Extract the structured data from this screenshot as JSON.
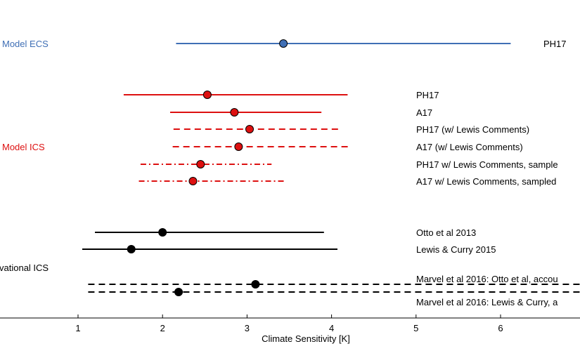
{
  "chart_data": {
    "type": "errorbar",
    "xlabel": "Climate Sensitivity [K]",
    "xlim": [
      -0.9,
      6.95
    ],
    "xticks": [
      1,
      2,
      3,
      4,
      5,
      6
    ],
    "colors": {
      "blue": "#3f6fb5",
      "red": "#dd1010",
      "black": "#000000"
    },
    "groups": [
      {
        "label": "Model ECS",
        "color": "blue"
      },
      {
        "label": "Model ICS",
        "color": "red"
      },
      {
        "label": "vational ICS",
        "color": "black"
      }
    ],
    "series": [
      {
        "name": "PH17",
        "group": 0,
        "center": 3.43,
        "low": 2.16,
        "high": 6.12,
        "style": "solid"
      },
      {
        "name": "PH17",
        "group": 1,
        "center": 2.53,
        "low": 1.54,
        "high": 4.19,
        "style": "solid"
      },
      {
        "name": "A17",
        "group": 1,
        "center": 2.85,
        "low": 2.09,
        "high": 3.88,
        "style": "solid"
      },
      {
        "name": "PH17 (w/ Lewis Comments)",
        "group": 1,
        "center": 3.03,
        "low": 2.13,
        "high": 4.08,
        "style": "dashed"
      },
      {
        "name": "A17 (w/ Lewis Comments)",
        "group": 1,
        "center": 2.9,
        "low": 2.12,
        "high": 4.22,
        "style": "dashed"
      },
      {
        "name": "PH17 w/ Lewis Comments, sample",
        "group": 1,
        "center": 2.45,
        "low": 1.74,
        "high": 3.29,
        "style": "dashdot"
      },
      {
        "name": "A17 w/ Lewis Comments, sampled",
        "group": 1,
        "center": 2.36,
        "low": 1.72,
        "high": 3.45,
        "style": "dashdot"
      },
      {
        "name": "Otto et al 2013",
        "group": 2,
        "center": 2.0,
        "low": 1.2,
        "high": 3.91,
        "style": "solid"
      },
      {
        "name": "Lewis & Curry 2015",
        "group": 2,
        "center": 1.63,
        "low": 1.05,
        "high": 4.07,
        "style": "solid"
      },
      {
        "name": "Marvel et al 2016: Otto et al, accou",
        "group": 2,
        "center": 3.1,
        "low": 1.12,
        "high": 6.95,
        "style": "dashed"
      },
      {
        "name": "Marvel et al 2016: Lewis & Curry, a",
        "group": 2,
        "center": 2.19,
        "low": 1.12,
        "high": 6.95,
        "style": "dashed"
      }
    ]
  }
}
